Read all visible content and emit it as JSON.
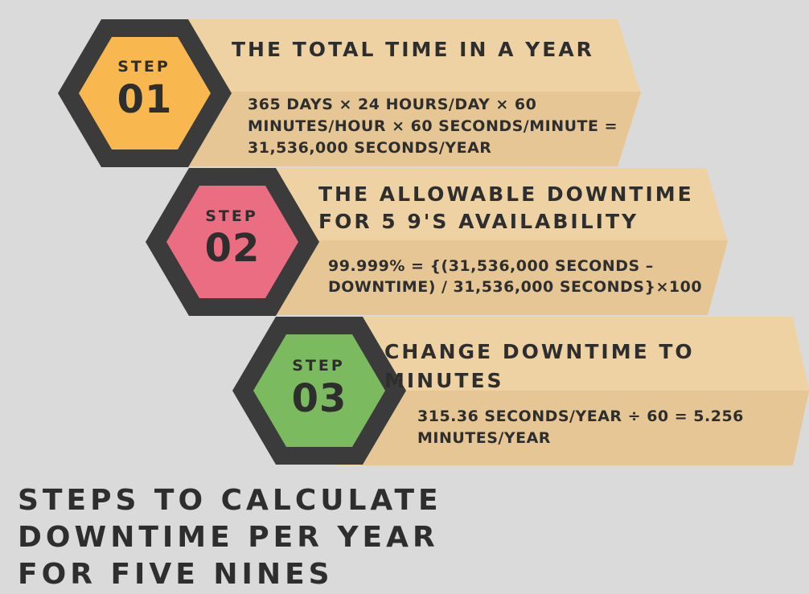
{
  "title_lines": [
    "Steps to calculate",
    "downtime per year",
    "for five nines"
  ],
  "steps": [
    {
      "word": "Step",
      "number": "01",
      "title": "The total time in a year",
      "body_lines": [
        "365 days × 24 hours/day × 60",
        "minutes/hour × 60 seconds/minute =",
        "31,536,000 seconds/year"
      ],
      "color": "#f9b750"
    },
    {
      "word": "Step",
      "number": "02",
      "title_lines": [
        "The allowable downtime",
        "for 5 9's availability"
      ],
      "body_lines": [
        "99.999% = {(31,536,000 seconds –",
        "downtime) / 31,536,000 seconds}×100"
      ],
      "color": "#eb6d82"
    },
    {
      "word": "Step",
      "number": "03",
      "title": "Change downtime to minutes",
      "body_lines": [
        "315.36 seconds/year ÷ 60 = 5.256",
        "minutes/year"
      ],
      "color": "#7bba5f"
    }
  ],
  "colors": {
    "background": "#dadada",
    "banner": "#efd2a4",
    "banner_shadow": "#d8b98b",
    "hex_ring": "#3b3b3b",
    "text": "#2e2e2e"
  }
}
